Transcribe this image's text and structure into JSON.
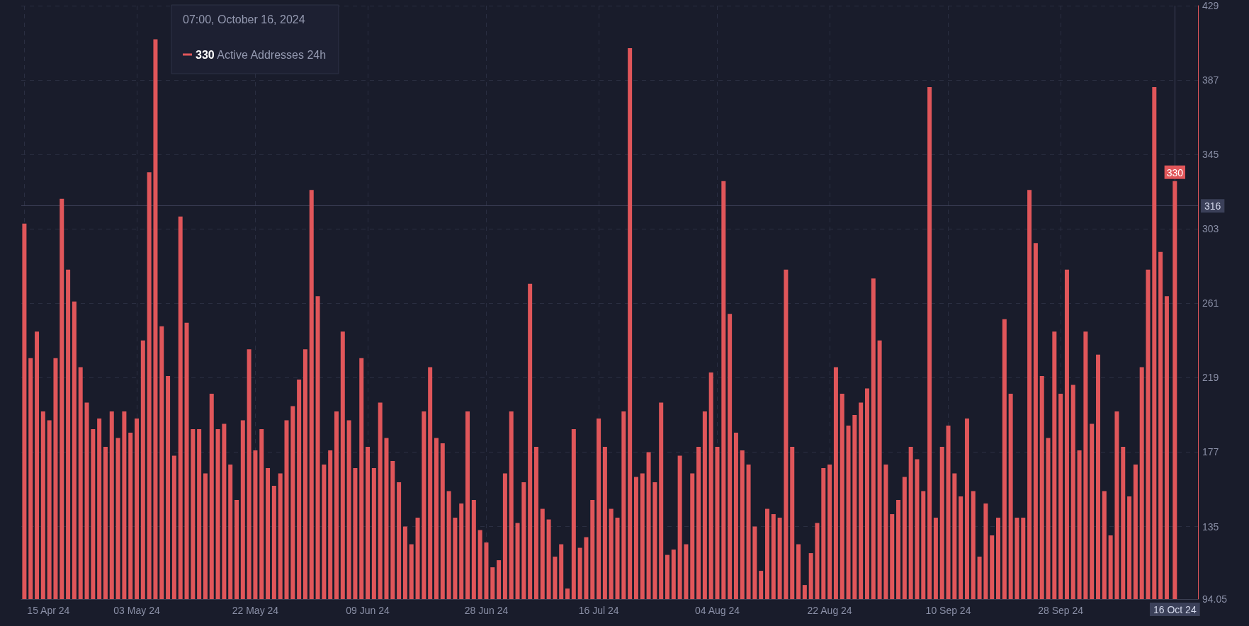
{
  "chart_data": {
    "type": "bar",
    "x": [
      "2024-04-15",
      "2024-04-16",
      "2024-04-17",
      "2024-04-18",
      "2024-04-19",
      "2024-04-20",
      "2024-04-21",
      "2024-04-22",
      "2024-04-23",
      "2024-04-24",
      "2024-04-25",
      "2024-04-26",
      "2024-04-27",
      "2024-04-28",
      "2024-04-29",
      "2024-04-30",
      "2024-05-01",
      "2024-05-02",
      "2024-05-03",
      "2024-05-04",
      "2024-05-05",
      "2024-05-06",
      "2024-05-07",
      "2024-05-08",
      "2024-05-09",
      "2024-05-10",
      "2024-05-11",
      "2024-05-12",
      "2024-05-13",
      "2024-05-14",
      "2024-05-15",
      "2024-05-16",
      "2024-05-17",
      "2024-05-18",
      "2024-05-19",
      "2024-05-20",
      "2024-05-21",
      "2024-05-22",
      "2024-05-23",
      "2024-05-24",
      "2024-05-25",
      "2024-05-26",
      "2024-05-27",
      "2024-05-28",
      "2024-05-29",
      "2024-05-30",
      "2024-05-31",
      "2024-06-01",
      "2024-06-02",
      "2024-06-03",
      "2024-06-04",
      "2024-06-05",
      "2024-06-06",
      "2024-06-07",
      "2024-06-08",
      "2024-06-09",
      "2024-06-10",
      "2024-06-11",
      "2024-06-12",
      "2024-06-13",
      "2024-06-14",
      "2024-06-15",
      "2024-06-16",
      "2024-06-17",
      "2024-06-18",
      "2024-06-19",
      "2024-06-20",
      "2024-06-21",
      "2024-06-22",
      "2024-06-23",
      "2024-06-24",
      "2024-06-25",
      "2024-06-26",
      "2024-06-27",
      "2024-06-28",
      "2024-06-29",
      "2024-06-30",
      "2024-07-01",
      "2024-07-02",
      "2024-07-03",
      "2024-07-04",
      "2024-07-05",
      "2024-07-06",
      "2024-07-07",
      "2024-07-08",
      "2024-07-09",
      "2024-07-10",
      "2024-07-11",
      "2024-07-12",
      "2024-07-13",
      "2024-07-14",
      "2024-07-15",
      "2024-07-16",
      "2024-07-17",
      "2024-07-18",
      "2024-07-19",
      "2024-07-20",
      "2024-07-21",
      "2024-07-22",
      "2024-07-23",
      "2024-07-24",
      "2024-07-25",
      "2024-07-26",
      "2024-07-27",
      "2024-07-28",
      "2024-07-29",
      "2024-07-30",
      "2024-07-31",
      "2024-08-01",
      "2024-08-02",
      "2024-08-03",
      "2024-08-04",
      "2024-08-05",
      "2024-08-06",
      "2024-08-07",
      "2024-08-08",
      "2024-08-09",
      "2024-08-10",
      "2024-08-11",
      "2024-08-12",
      "2024-08-13",
      "2024-08-14",
      "2024-08-15",
      "2024-08-16",
      "2024-08-17",
      "2024-08-18",
      "2024-08-19",
      "2024-08-20",
      "2024-08-21",
      "2024-08-22",
      "2024-08-23",
      "2024-08-24",
      "2024-08-25",
      "2024-08-26",
      "2024-08-27",
      "2024-08-28",
      "2024-08-29",
      "2024-08-30",
      "2024-08-31",
      "2024-09-01",
      "2024-09-02",
      "2024-09-03",
      "2024-09-04",
      "2024-09-05",
      "2024-09-06",
      "2024-09-07",
      "2024-09-08",
      "2024-09-09",
      "2024-09-10",
      "2024-09-11",
      "2024-09-12",
      "2024-09-13",
      "2024-09-14",
      "2024-09-15",
      "2024-09-16",
      "2024-09-17",
      "2024-09-18",
      "2024-09-19",
      "2024-09-20",
      "2024-09-21",
      "2024-09-22",
      "2024-09-23",
      "2024-09-24",
      "2024-09-25",
      "2024-09-26",
      "2024-09-27",
      "2024-09-28",
      "2024-09-29",
      "2024-09-30",
      "2024-10-01",
      "2024-10-02",
      "2024-10-03",
      "2024-10-04",
      "2024-10-05",
      "2024-10-06",
      "2024-10-07",
      "2024-10-08",
      "2024-10-09",
      "2024-10-10",
      "2024-10-11",
      "2024-10-12",
      "2024-10-13",
      "2024-10-14",
      "2024-10-15",
      "2024-10-16T07:00"
    ],
    "series": [
      {
        "name": "Active Addresses 24h",
        "color": "#e0565a",
        "values": [
          306,
          230,
          245,
          200,
          195,
          230,
          320,
          280,
          262,
          225,
          205,
          190,
          196,
          180,
          200,
          185,
          200,
          188,
          196,
          240,
          335,
          410,
          248,
          220,
          175,
          310,
          250,
          190,
          190,
          165,
          210,
          190,
          193,
          170,
          150,
          195,
          235,
          178,
          190,
          168,
          158,
          165,
          195,
          203,
          218,
          235,
          325,
          265,
          170,
          178,
          200,
          245,
          195,
          168,
          230,
          180,
          168,
          205,
          185,
          172,
          160,
          135,
          125,
          140,
          200,
          225,
          185,
          182,
          155,
          140,
          148,
          200,
          150,
          133,
          126,
          112,
          116,
          165,
          200,
          137,
          160,
          272,
          180,
          145,
          139,
          118,
          125,
          100,
          190,
          123,
          129,
          150,
          196,
          180,
          145,
          140,
          200,
          405,
          163,
          165,
          177,
          160,
          205,
          119,
          122,
          175,
          125,
          165,
          180,
          200,
          222,
          180,
          330,
          255,
          188,
          178,
          170,
          135,
          110,
          145,
          142,
          140,
          280,
          180,
          125,
          102,
          120,
          137,
          168,
          170,
          225,
          210,
          192,
          198,
          205,
          213,
          275,
          240,
          170,
          142,
          150,
          163,
          180,
          173,
          155,
          383,
          140,
          180,
          192,
          165,
          152,
          196,
          155,
          118,
          148,
          130,
          140,
          252,
          210,
          140,
          140,
          325,
          295,
          220,
          185,
          245,
          210,
          280,
          215,
          178,
          245,
          193,
          232,
          155,
          130,
          200,
          180,
          152,
          170,
          225,
          280,
          383,
          290,
          265,
          330
        ],
        "value_labels": [
          null,
          null,
          null,
          null,
          null,
          null,
          null,
          null,
          null,
          null,
          null,
          null,
          null,
          null,
          null,
          null,
          null,
          null,
          null,
          null,
          null,
          null,
          null,
          null,
          null,
          null,
          null,
          null,
          null,
          null,
          null,
          null,
          null,
          null,
          null,
          null,
          null,
          null,
          null,
          null,
          null,
          null,
          null,
          null,
          null,
          null,
          null,
          null,
          null,
          null,
          null,
          null,
          null,
          null,
          null,
          null,
          null,
          null,
          null,
          null,
          null,
          null,
          null,
          null,
          null,
          null,
          null,
          null,
          null,
          null,
          null,
          null,
          null,
          null,
          null,
          null,
          null,
          null,
          null,
          null,
          null,
          null,
          null,
          null,
          null,
          null,
          null,
          null,
          null,
          null,
          null,
          null,
          null,
          null,
          null,
          null,
          null,
          null,
          null,
          null,
          null,
          null,
          null,
          null,
          null,
          null,
          null,
          null,
          null,
          null,
          null,
          null,
          null,
          null,
          null,
          null,
          null,
          null,
          null,
          null,
          null,
          null,
          null,
          null,
          null,
          null,
          null,
          null,
          null,
          null,
          null,
          null,
          null,
          null,
          null,
          null,
          null,
          null,
          null,
          null,
          null,
          null,
          null,
          null,
          null,
          null,
          null,
          null,
          null,
          null,
          null,
          null,
          null,
          null,
          null,
          null,
          null,
          null,
          null,
          null,
          null,
          null,
          null,
          null,
          null,
          null,
          null,
          null,
          null,
          null,
          null,
          null,
          null,
          null,
          null,
          null,
          null,
          null,
          null,
          null,
          null,
          null,
          null,
          null,
          "330"
        ]
      }
    ],
    "xlim": [
      "2024-04-14T12:00",
      "2024-10-20T00:00"
    ],
    "ylim": [
      94.05,
      429
    ],
    "xticks": [
      {
        "value": "2024-04-15",
        "label": "15 Apr 24"
      },
      {
        "value": "2024-05-03",
        "label": "03 May 24"
      },
      {
        "value": "2024-05-22",
        "label": "22 May 24"
      },
      {
        "value": "2024-06-09",
        "label": "09 Jun 24"
      },
      {
        "value": "2024-06-28",
        "label": "28 Jun 24"
      },
      {
        "value": "2024-07-16",
        "label": "16 Jul 24"
      },
      {
        "value": "2024-08-04",
        "label": "04 Aug 24"
      },
      {
        "value": "2024-08-22",
        "label": "22 Aug 24"
      },
      {
        "value": "2024-09-10",
        "label": "10 Sep 24"
      },
      {
        "value": "2024-09-28",
        "label": "28 Sep 24"
      }
    ],
    "yticks": [
      94.05,
      135,
      177,
      219,
      261,
      303,
      345,
      387,
      429
    ],
    "ref_lines": [
      {
        "axis": "x",
        "value": "2024-10-16T07:00",
        "label": "16 Oct 24",
        "color": "#3b3f56"
      },
      {
        "axis": "y",
        "value": 316,
        "label": "316",
        "color": "#3b3f56"
      }
    ],
    "annotations": [
      "07:00, October 16, 2024"
    ],
    "legend": "top left",
    "grid": true
  }
}
